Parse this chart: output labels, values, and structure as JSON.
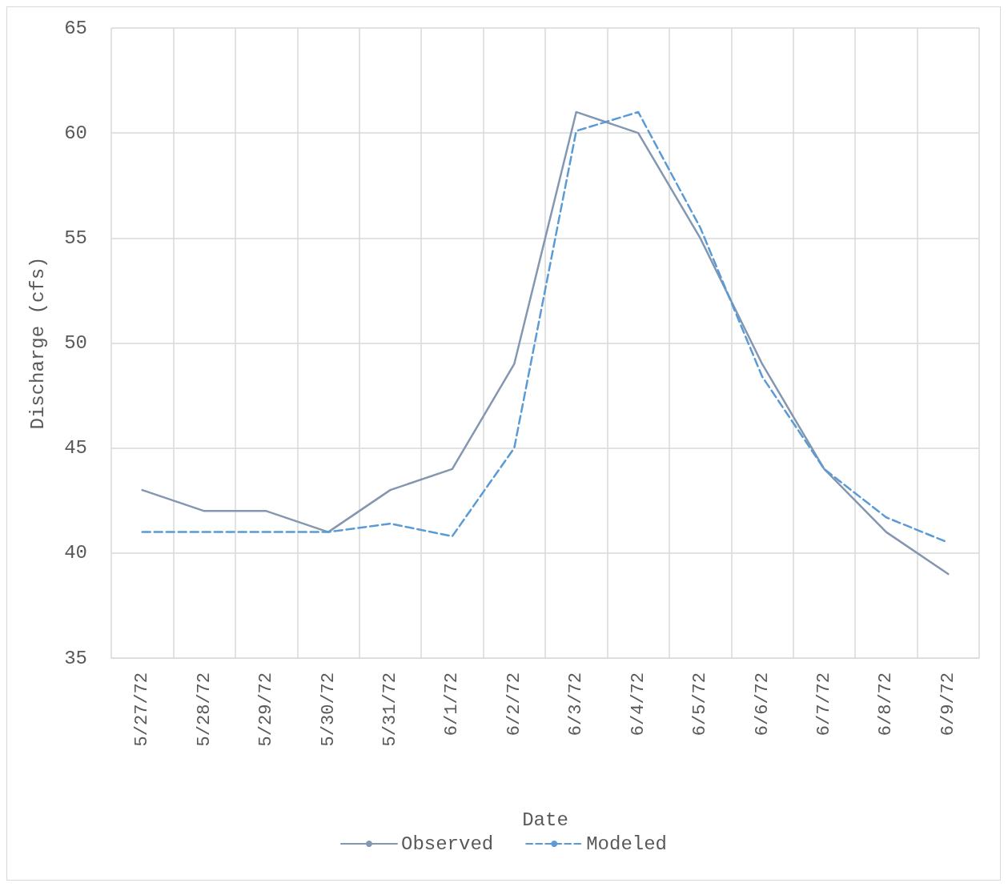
{
  "chart_data": {
    "type": "line",
    "xlabel": "Date",
    "ylabel": "Discharge (cfs)",
    "categories": [
      "5/27/72",
      "5/28/72",
      "5/29/72",
      "5/30/72",
      "5/31/72",
      "6/1/72",
      "6/2/72",
      "6/3/72",
      "6/4/72",
      "6/5/72",
      "6/6/72",
      "6/7/72",
      "6/8/72",
      "6/9/72"
    ],
    "series": [
      {
        "name": "Observed",
        "color": "#8497b0",
        "line_style": "solid",
        "values": [
          43,
          42,
          42,
          41,
          43,
          44,
          49,
          61,
          60,
          55,
          49,
          44,
          41,
          39
        ]
      },
      {
        "name": "Modeled",
        "color": "#5b9bd5",
        "line_style": "dashed",
        "values": [
          41,
          41,
          41,
          41,
          41.4,
          40.8,
          45,
          60.1,
          61,
          55.5,
          48.4,
          44,
          41.7,
          40.5
        ]
      }
    ],
    "ylim": [
      35,
      65
    ],
    "yticks": [
      35,
      40,
      45,
      50,
      55,
      60,
      65
    ],
    "grid": true,
    "legend": "bottom",
    "marker": "none"
  }
}
